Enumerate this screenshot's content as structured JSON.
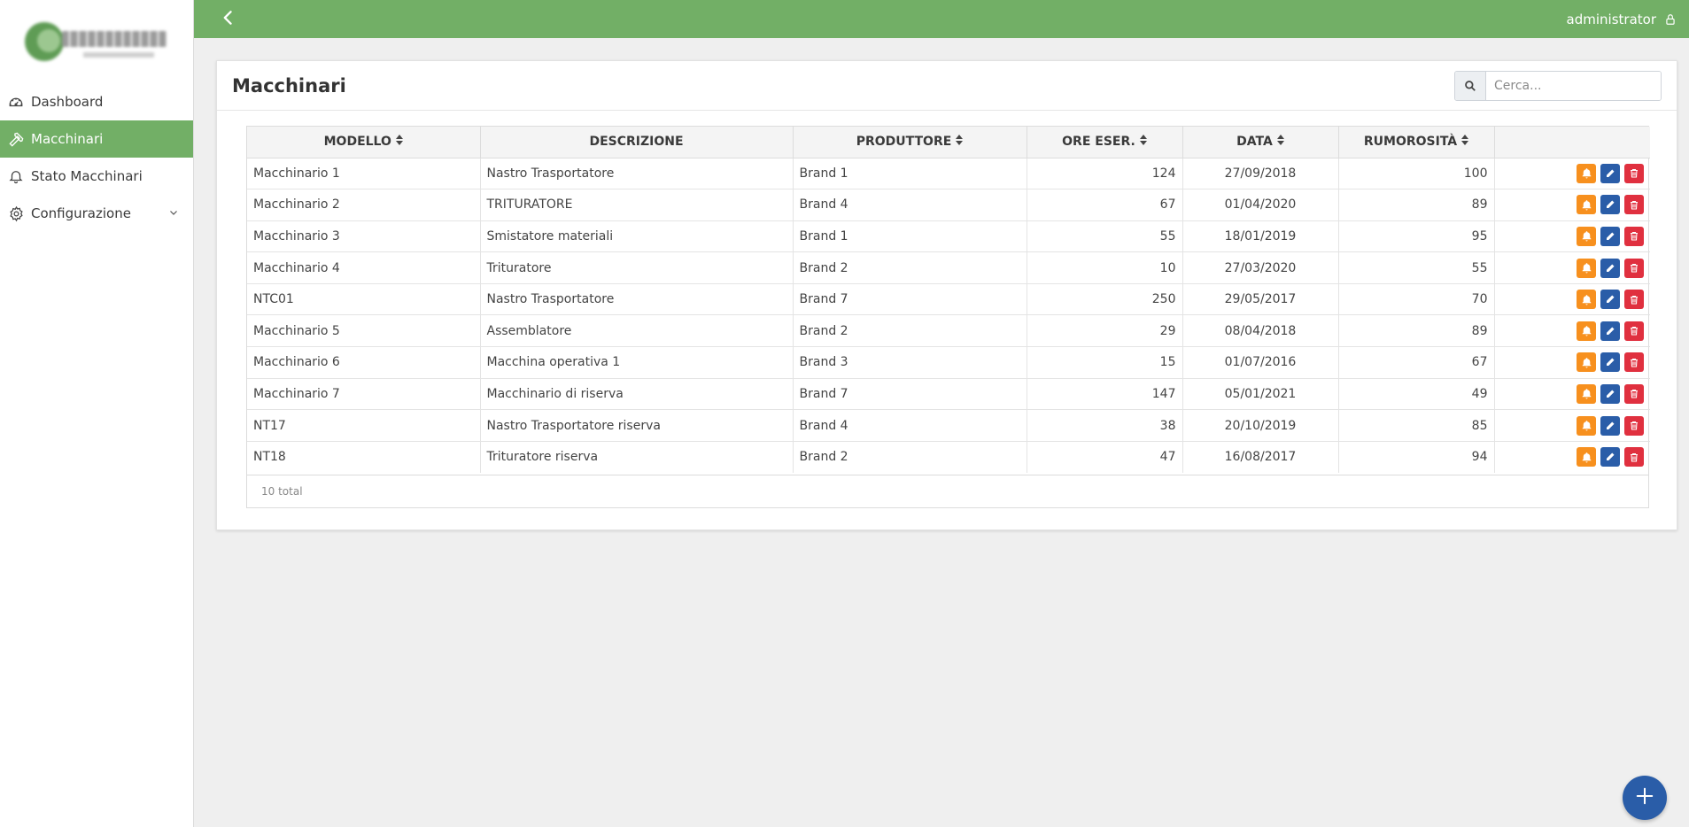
{
  "sidebar": {
    "logo": "company-logo",
    "items": [
      {
        "label": "Dashboard",
        "icon": "speedometer-icon"
      },
      {
        "label": "Macchinari",
        "icon": "hammer-icon"
      },
      {
        "label": "Stato Macchinari",
        "icon": "bell-icon"
      },
      {
        "label": "Configurazione",
        "icon": "gear-icon"
      }
    ]
  },
  "topbar": {
    "user": "administrator",
    "color": "#72af66"
  },
  "page": {
    "title": "Macchinari",
    "search_placeholder": "Cerca..."
  },
  "table": {
    "columns": [
      "MODELLO",
      "DESCRIZIONE",
      "PRODUTTORE",
      "ORE ESER.",
      "DATA",
      "RUMOROSITÀ"
    ],
    "rows": [
      [
        "Macchinario 1",
        "Nastro Trasportatore",
        "Brand 1",
        "124",
        "27/09/2018",
        "100"
      ],
      [
        "Macchinario 2",
        "TRITURATORE",
        "Brand 4",
        "67",
        "01/04/2020",
        "89"
      ],
      [
        "Macchinario 3",
        "Smistatore materiali",
        "Brand 1",
        "55",
        "18/01/2019",
        "95"
      ],
      [
        "Macchinario 4",
        "Trituratore",
        "Brand 2",
        "10",
        "27/03/2020",
        "55"
      ],
      [
        "NTC01",
        "Nastro Trasportatore",
        "Brand 7",
        "250",
        "29/05/2017",
        "70"
      ],
      [
        "Macchinario 5",
        "Assemblatore",
        "Brand 2",
        "29",
        "08/04/2018",
        "89"
      ],
      [
        "Macchinario 6",
        "Macchina operativa 1",
        "Brand 3",
        "15",
        "01/07/2016",
        "67"
      ],
      [
        "Macchinario 7",
        "Macchinario di riserva",
        "Brand 7",
        "147",
        "05/01/2021",
        "49"
      ],
      [
        "NT17",
        "Nastro Trasportatore riserva",
        "Brand 4",
        "38",
        "20/10/2019",
        "85"
      ],
      [
        "NT18",
        "Trituratore riserva",
        "Brand 2",
        "47",
        "16/08/2017",
        "94"
      ]
    ],
    "footer": "10 total"
  },
  "colors": {
    "accent": "#72af66",
    "primary": "#2a5da8",
    "warning": "#f7901e",
    "danger": "#e0303f"
  }
}
